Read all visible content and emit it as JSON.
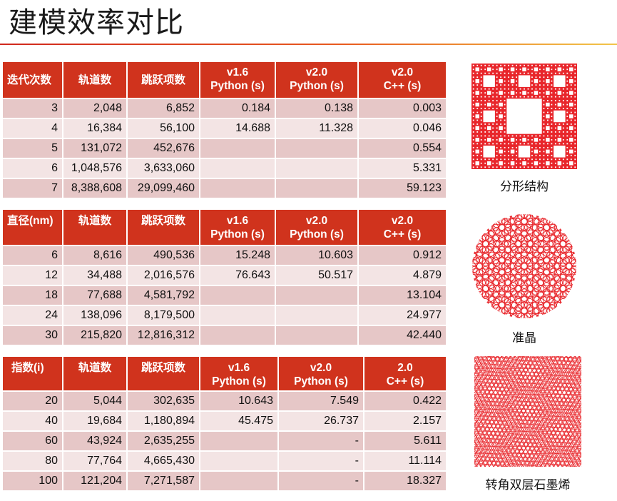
{
  "title": "建模效率对比",
  "table1": {
    "headers": [
      "迭代次数",
      "轨道数",
      "跳跃项数",
      "v1.6\nPython (s)",
      "v2.0\nPython (s)",
      "v2.0\nC++ (s)"
    ],
    "rows": [
      [
        "3",
        "2,048",
        "6,852",
        "0.184",
        "0.138",
        "0.003"
      ],
      [
        "4",
        "16,384",
        "56,100",
        "14.688",
        "11.328",
        "0.046"
      ],
      [
        "5",
        "131,072",
        "452,676",
        "",
        "",
        "0.554"
      ],
      [
        "6",
        "1,048,576",
        "3,633,060",
        "",
        "",
        "5.331"
      ],
      [
        "7",
        "8,388,608",
        "29,099,460",
        "",
        "",
        "59.123"
      ]
    ]
  },
  "table2": {
    "headers": [
      "直径(nm)",
      "轨道数",
      "跳跃项数",
      "v1.6\nPython (s)",
      "v2.0\nPython (s)",
      "v2.0\nC++ (s)"
    ],
    "rows": [
      [
        "6",
        "8,616",
        "490,536",
        "15.248",
        "10.603",
        "0.912"
      ],
      [
        "12",
        "34,488",
        "2,016,576",
        "76.643",
        "50.517",
        "4.879"
      ],
      [
        "18",
        "77,688",
        "4,581,792",
        "",
        "",
        "13.104"
      ],
      [
        "24",
        "138,096",
        "8,179,500",
        "",
        "",
        "24.977"
      ],
      [
        "30",
        "215,820",
        "12,816,312",
        "",
        "",
        "42.440"
      ]
    ]
  },
  "table3": {
    "headers": [
      "指数(i)",
      "轨道数",
      "跳跃项数",
      "v1.6\nPython (s)",
      "v2.0\nPython (s)",
      "2.0\nC++ (s)"
    ],
    "rows": [
      [
        "20",
        "5,044",
        "302,635",
        "10.643",
        "7.549",
        "0.422"
      ],
      [
        "40",
        "19,684",
        "1,180,894",
        "45.475",
        "26.737",
        "2.157"
      ],
      [
        "60",
        "43,924",
        "2,635,255",
        "",
        "-",
        "5.611"
      ],
      [
        "80",
        "77,764",
        "4,665,430",
        "",
        "-",
        "11.114"
      ],
      [
        "100",
        "121,204",
        "7,271,587",
        "",
        "-",
        "18.327"
      ]
    ]
  },
  "figures": {
    "fractal_caption": "分形结构",
    "quasicrystal_caption": "准晶",
    "twisted_caption": "转角双层石墨烯"
  },
  "colors": {
    "header_red": "#d0331d",
    "row_odd": "#e6c7c7",
    "row_even": "#f3e4e4",
    "figure_red": "#e8262b"
  }
}
